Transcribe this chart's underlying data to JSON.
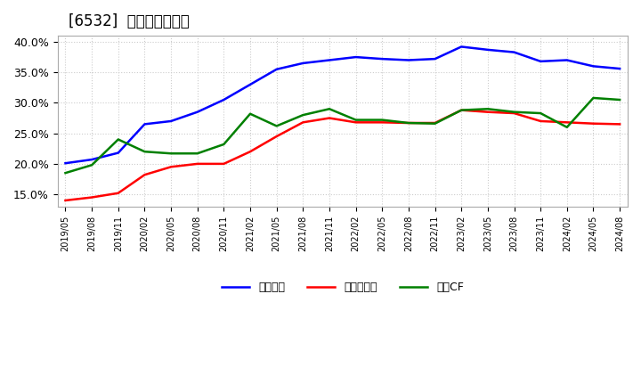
{
  "title": "[6532]  マージンの推移",
  "ylim": [
    0.13,
    0.41
  ],
  "yticks": [
    0.15,
    0.2,
    0.25,
    0.3,
    0.35,
    0.4
  ],
  "ytick_labels": [
    "15.0%",
    "20.0%",
    "25.0%",
    "30.0%",
    "35.0%",
    "40.0%"
  ],
  "background_color": "#ffffff",
  "grid_color": "#cccccc",
  "legend_labels": [
    "経常利益",
    "当期純利益",
    "営業CF"
  ],
  "line_colors": [
    "#0000ff",
    "#ff0000",
    "#008000"
  ],
  "x_labels": [
    "2019/05",
    "2019/08",
    "2019/11",
    "2020/02",
    "2020/05",
    "2020/08",
    "2020/11",
    "2021/02",
    "2021/05",
    "2021/08",
    "2021/11",
    "2022/02",
    "2022/05",
    "2022/08",
    "2022/11",
    "2023/02",
    "2023/05",
    "2023/08",
    "2023/11",
    "2024/02",
    "2024/05",
    "2024/08"
  ],
  "blue_data": {
    "x": [
      0,
      1,
      2,
      3,
      4,
      5,
      6,
      7,
      8,
      9,
      10,
      11,
      12,
      13,
      14,
      15,
      16,
      17,
      18,
      19,
      20,
      21
    ],
    "y": [
      0.201,
      0.207,
      0.218,
      0.265,
      0.27,
      0.285,
      0.305,
      0.33,
      0.355,
      0.365,
      0.37,
      0.375,
      0.372,
      0.37,
      0.372,
      0.392,
      0.387,
      0.383,
      0.368,
      0.37,
      0.36,
      0.356
    ]
  },
  "red_data": {
    "x": [
      0,
      1,
      2,
      3,
      4,
      5,
      6,
      7,
      8,
      9,
      10,
      11,
      12,
      13,
      14,
      15,
      16,
      17,
      18,
      19,
      20,
      21
    ],
    "y": [
      0.14,
      0.145,
      0.152,
      0.182,
      0.195,
      0.2,
      0.2,
      0.22,
      0.245,
      0.268,
      0.275,
      0.268,
      0.268,
      0.267,
      0.267,
      0.288,
      0.285,
      0.283,
      0.27,
      0.268,
      0.266,
      0.265
    ]
  },
  "green_data": {
    "x": [
      0,
      1,
      2,
      3,
      4,
      5,
      6,
      7,
      8,
      9,
      10,
      11,
      12,
      13,
      14,
      15,
      16,
      17,
      18,
      19,
      20,
      21
    ],
    "y": [
      0.185,
      0.198,
      0.24,
      0.22,
      0.217,
      0.217,
      0.232,
      0.282,
      0.262,
      0.28,
      0.29,
      0.272,
      0.272,
      0.267,
      0.266,
      0.288,
      0.29,
      0.285,
      0.283,
      0.26,
      0.308,
      0.305
    ]
  }
}
